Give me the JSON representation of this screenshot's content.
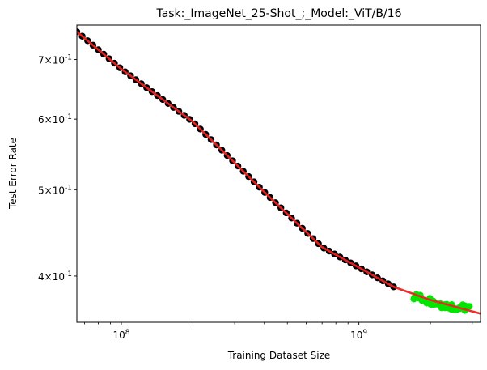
{
  "chart_data": {
    "type": "scatter",
    "title": "Task:_ImageNet_25-Shot_;_Model:_ViT/B/16",
    "xlabel": "Training Dataset Size",
    "ylabel": "Test Error Rate",
    "x_scale": "log",
    "y_scale": "log",
    "xlim": [
      65000000,
      3250000000
    ],
    "ylim": [
      0.355,
      0.765
    ],
    "grid": false,
    "legend": "none",
    "x_ticks": [
      {
        "value": 100000000,
        "label": "10^8"
      },
      {
        "value": 1000000000,
        "label": "10^9"
      }
    ],
    "y_ticks": [
      {
        "value": 0.4,
        "label": "4×10^-1"
      },
      {
        "value": 0.5,
        "label": "5×10^-1"
      },
      {
        "value": 0.6,
        "label": "6×10^-1"
      },
      {
        "value": 0.7,
        "label": "7×10^-1"
      }
    ],
    "series": [
      {
        "role": "training points",
        "color": "#000000",
        "x_range": [
          65000000,
          1400000000
        ],
        "count": 60,
        "points": [
          [
            65000000,
            0.752
          ],
          [
            100000000,
            0.683
          ],
          [
            200000000,
            0.596
          ],
          [
            400000000,
            0.497
          ],
          [
            700000000,
            0.431
          ],
          [
            1000000000,
            0.409
          ],
          [
            1400000000,
            0.389
          ]
        ]
      },
      {
        "role": "held-out points",
        "color": "#00e600",
        "x_range": [
          1700000000,
          2900000000
        ],
        "count": 45,
        "points": [
          [
            1700000000,
            0.38
          ],
          [
            2000000000,
            0.375
          ],
          [
            2300000000,
            0.371
          ],
          [
            2600000000,
            0.369
          ],
          [
            2900000000,
            0.368
          ]
        ]
      },
      {
        "role": "fitted curve",
        "color": "#ee2222",
        "style": "line",
        "points": [
          [
            65000000,
            0.752
          ],
          [
            100000000,
            0.683
          ],
          [
            200000000,
            0.596
          ],
          [
            400000000,
            0.497
          ],
          [
            700000000,
            0.431
          ],
          [
            1000000000,
            0.409
          ],
          [
            1400000000,
            0.389
          ],
          [
            2000000000,
            0.376
          ],
          [
            3250000000,
            0.363
          ]
        ]
      }
    ]
  }
}
